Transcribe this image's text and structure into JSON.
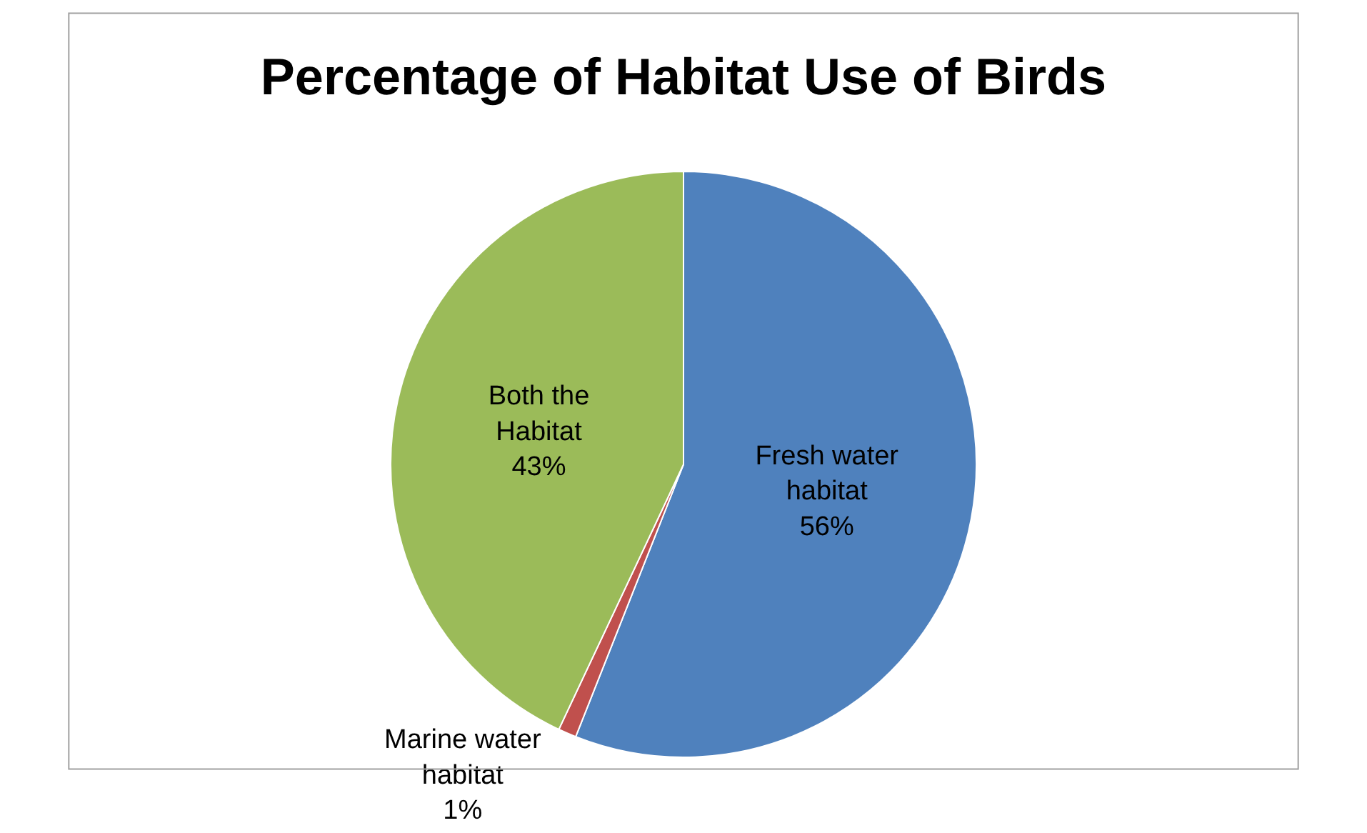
{
  "chart_data": {
    "type": "pie",
    "title": "Percentage of Habitat Use of Birds",
    "categories": [
      "Fresh water habitat",
      "Marine water habitat",
      "Both the Habitat"
    ],
    "values": [
      56,
      1,
      43
    ],
    "colors": [
      "#4f81bd",
      "#c0504d",
      "#9bbb59"
    ],
    "value_labels": [
      "56%",
      "1%",
      "43%"
    ],
    "legend": false
  }
}
